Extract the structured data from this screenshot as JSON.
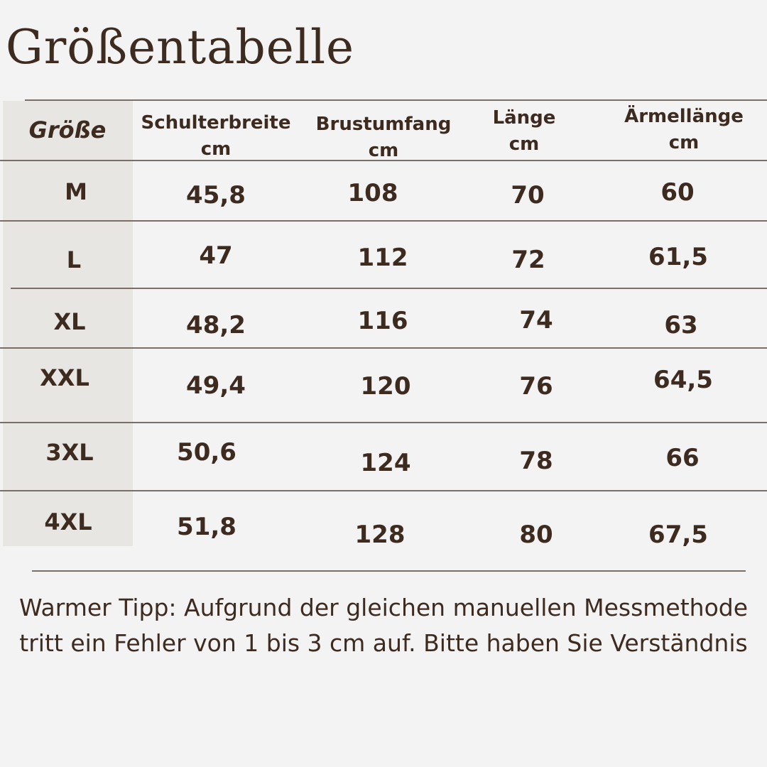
{
  "title": "Größentabelle",
  "colors": {
    "background": "#f3f3f3",
    "first_column": "#e8e6e3",
    "text": "#3e2b20",
    "lines": "#7a6e66"
  },
  "table": {
    "headers": [
      {
        "label": "Größe",
        "unit": ""
      },
      {
        "label": "Schulterbreite",
        "unit": "cm"
      },
      {
        "label": "Brustumfang",
        "unit": "cm"
      },
      {
        "label": "Länge",
        "unit": "cm"
      },
      {
        "label": "Ärmellänge",
        "unit": "cm"
      }
    ],
    "rows": [
      {
        "cells": [
          "M",
          "45,8",
          "108",
          "70",
          "60"
        ]
      },
      {
        "cells": [
          "L",
          "47",
          "112",
          "72",
          "61,5"
        ]
      },
      {
        "cells": [
          "XL",
          "48,2",
          "116",
          "74",
          "63"
        ]
      },
      {
        "cells": [
          "XXL",
          "49,4",
          "120",
          "76",
          "64,5"
        ]
      },
      {
        "cells": [
          "3XL",
          "50,6",
          "124",
          "78",
          "66"
        ]
      },
      {
        "cells": [
          "4XL",
          "51,8",
          "128",
          "80",
          "67,5"
        ]
      }
    ]
  },
  "footer": {
    "line1": "Warmer Tipp: Aufgrund der gleichen manuellen Messmethode",
    "line2": "tritt ein Fehler von 1 bis 3 cm auf. Bitte haben Sie Verständnis"
  }
}
